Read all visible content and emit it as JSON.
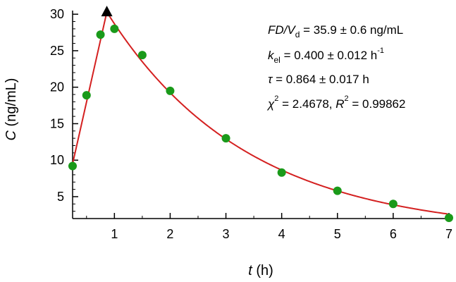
{
  "chart_data": {
    "type": "scatter",
    "xlabel": {
      "symbol": "t",
      "unit": " (h)"
    },
    "ylabel": {
      "symbol": "C",
      "unit": " (ng/mL)"
    },
    "xlim": [
      0.25,
      7.0
    ],
    "ylim": [
      2.0,
      30.5
    ],
    "xticks": [
      1,
      2,
      3,
      4,
      5,
      6,
      7
    ],
    "yticks": [
      5,
      10,
      15,
      20,
      25,
      30
    ],
    "grid": false,
    "colors": {
      "points": "#1a9a1a",
      "fit": "#d42020",
      "marker": "#000000",
      "axes": "#000000"
    },
    "series": [
      {
        "kind": "scatter",
        "x": [
          0.25,
          0.5,
          0.75,
          1.0,
          1.5,
          2.0,
          3.0,
          4.0,
          5.0,
          6.0,
          7.0
        ],
        "y": [
          9.2,
          18.9,
          27.2,
          28.0,
          24.4,
          19.5,
          13.0,
          8.3,
          5.8,
          4.0,
          2.1
        ]
      },
      {
        "kind": "fit",
        "peak": {
          "x": 0.864,
          "y": 30.3
        },
        "rise_start": {
          "x": 0.25,
          "y": 9.5
        },
        "k_el": 0.4
      }
    ],
    "peak_marker": {
      "x": 0.864,
      "y": 30.3,
      "shape": "triangle-up"
    },
    "annotations": {
      "line1": {
        "italic": "FD/V",
        "sub": "d",
        "rest": " = 35.9 ± 0.6 ng/mL"
      },
      "line2": {
        "italic": "k",
        "sub": "el",
        "rest": " = 0.400 ± 0.012 h",
        "sup": "-1"
      },
      "line3": {
        "italic": "τ",
        "rest": " = 0.864 ± 0.017 h"
      },
      "line4": {
        "italic": "χ",
        "sup": "2",
        "rest": " = 2.4678,  ",
        "italic2": "R",
        "sup2": "2",
        "rest2": " = 0.99862"
      }
    }
  }
}
